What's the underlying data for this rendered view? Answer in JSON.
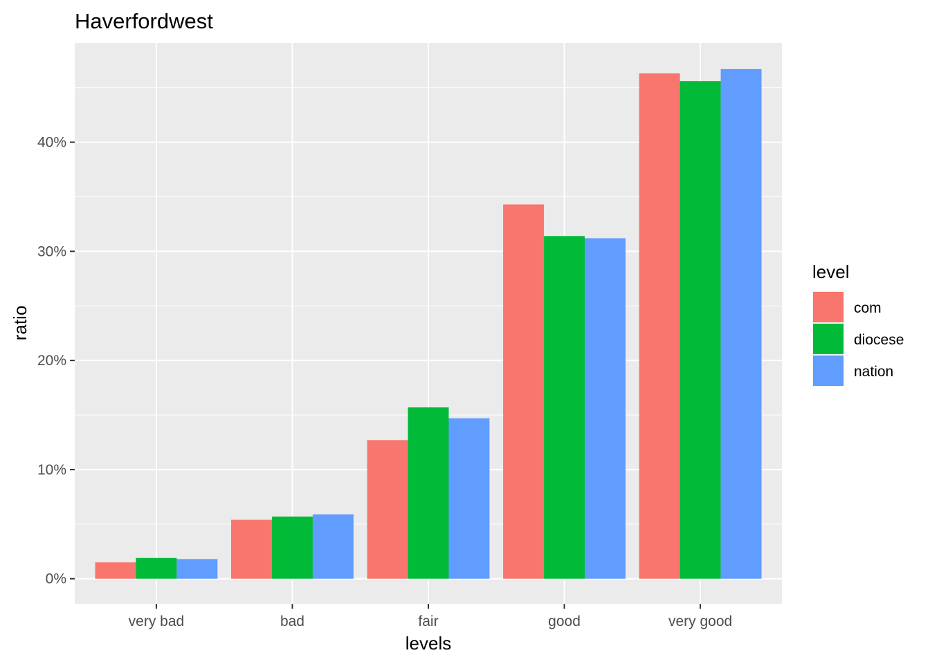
{
  "chart_data": {
    "type": "bar",
    "title": "Haverfordwest",
    "xlabel": "levels",
    "ylabel": "ratio",
    "categories": [
      "very bad",
      "bad",
      "fair",
      "good",
      "very good"
    ],
    "series": [
      {
        "name": "com",
        "color": "#F8766D",
        "values": [
          1.5,
          5.4,
          12.7,
          34.3,
          46.3
        ]
      },
      {
        "name": "diocese",
        "color": "#00BA38",
        "values": [
          1.9,
          5.7,
          15.7,
          31.4,
          45.6
        ]
      },
      {
        "name": "nation",
        "color": "#619CFF",
        "values": [
          1.8,
          5.9,
          14.7,
          31.2,
          46.7
        ]
      }
    ],
    "ylim": [
      -2.3,
      49.1
    ],
    "yticks": [
      0,
      10,
      20,
      30,
      40
    ],
    "ytick_labels": [
      "0%",
      "10%",
      "20%",
      "30%",
      "40%"
    ],
    "legend": {
      "title": "level",
      "position": "right"
    },
    "grid": true,
    "panel_background": "#EBEBEB"
  }
}
